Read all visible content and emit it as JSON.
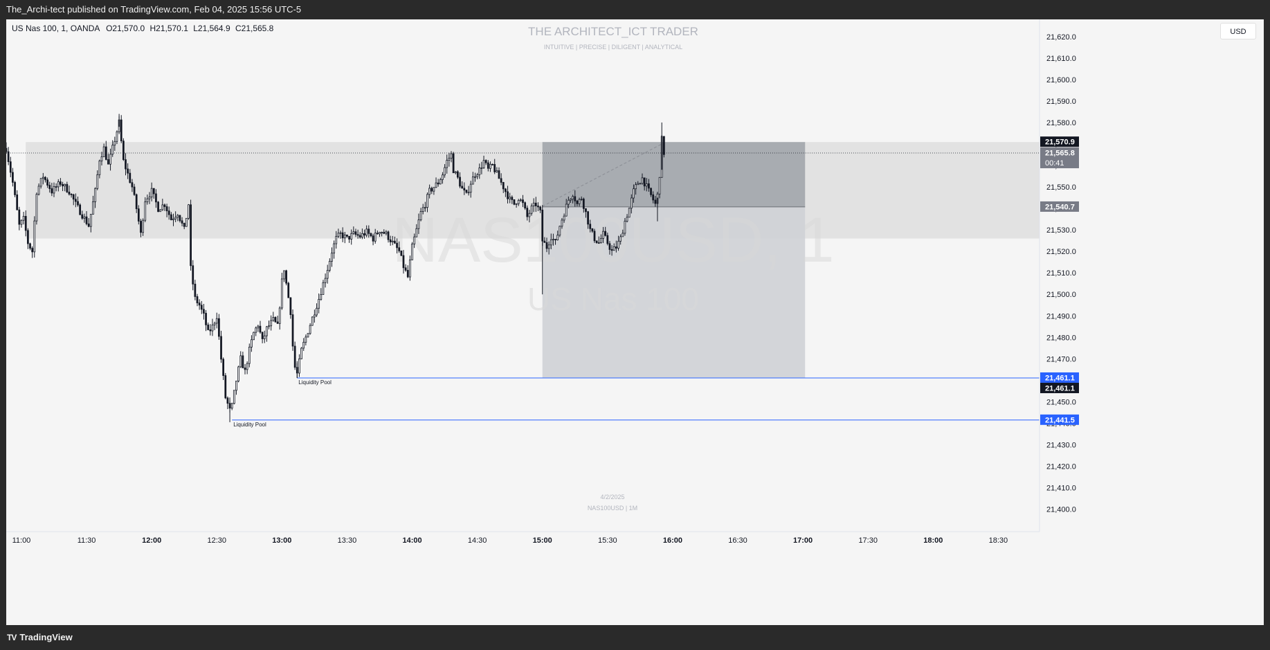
{
  "header": {
    "published_text": "The_Archi-tect published on TradingView.com, Feb 04, 2025 15:56 UTC-5"
  },
  "footer": {
    "brand": "TradingView",
    "logo": "tradingview-logo"
  },
  "legend": {
    "symbol": "US Nas 100, 1, OANDA",
    "open_label": "O",
    "open": "21,570.0",
    "high_label": "H",
    "high": "21,570.1",
    "low_label": "L",
    "low": "21,564.9",
    "close_label": "C",
    "close": "21,565.8"
  },
  "currency_button": "USD",
  "watermark": {
    "title": "THE ARCHITECT_ICT TRADER",
    "subtitle": "INTUITIVE | PRECISE | DILIGENT | ANALYTICAL",
    "symbol_big": "NAS100USD, 1",
    "name_big": "US Nas 100",
    "bottom_date": "4/2/2025",
    "bottom_symbol": "NAS100USD | 1M"
  },
  "colors": {
    "background": "#f5f5f5",
    "candle": "#131722",
    "zone_light": "#e0e0e0",
    "zone_dark": "#9ea2a8",
    "zone_mid": "#cfd2d6",
    "liquidity_line": "#2962ff",
    "price_badge_dark": "#131722",
    "price_badge_grey": "#787b86"
  },
  "chart_data": {
    "type": "candlestick",
    "interval": "1m",
    "ylim": [
      21396,
      21628
    ],
    "xlim": [
      "10:53",
      "18:49"
    ],
    "y_ticks": [
      "21,620.0",
      "21,610.0",
      "21,600.0",
      "21,590.0",
      "21,580.0",
      "21,570.0",
      "21,560.0",
      "21,550.0",
      "21,540.0",
      "21,530.0",
      "21,520.0",
      "21,510.0",
      "21,500.0",
      "21,490.0",
      "21,480.0",
      "21,470.0",
      "21,460.0",
      "21,450.0",
      "21,440.0",
      "21,430.0",
      "21,420.0",
      "21,410.0",
      "21,400.0"
    ],
    "x_ticks": [
      "11:00",
      "11:30",
      "12:00",
      "12:30",
      "13:00",
      "13:30",
      "14:00",
      "14:30",
      "15:00",
      "15:30",
      "16:00",
      "16:30",
      "17:00",
      "17:30",
      "18:00",
      "18:30"
    ],
    "x_ticks_bold": [
      "12:00",
      "13:00",
      "14:00",
      "15:00",
      "16:00",
      "17:00",
      "18:00"
    ],
    "price_path": [
      {
        "t": "10:53",
        "p": 21568
      },
      {
        "t": "10:56",
        "p": 21552
      },
      {
        "t": "10:59",
        "p": 21532
      },
      {
        "t": "11:01",
        "p": 21535
      },
      {
        "t": "11:03",
        "p": 21524
      },
      {
        "t": "11:05",
        "p": 21520
      },
      {
        "t": "11:07",
        "p": 21548
      },
      {
        "t": "11:10",
        "p": 21555
      },
      {
        "t": "11:14",
        "p": 21548
      },
      {
        "t": "11:18",
        "p": 21552
      },
      {
        "t": "11:22",
        "p": 21548
      },
      {
        "t": "11:25",
        "p": 21542
      },
      {
        "t": "11:28",
        "p": 21537
      },
      {
        "t": "11:31",
        "p": 21532
      },
      {
        "t": "11:34",
        "p": 21548
      },
      {
        "t": "11:36",
        "p": 21563
      },
      {
        "t": "11:38",
        "p": 21568
      },
      {
        "t": "11:40",
        "p": 21560
      },
      {
        "t": "11:43",
        "p": 21572
      },
      {
        "t": "11:45",
        "p": 21580
      },
      {
        "t": "11:47",
        "p": 21562
      },
      {
        "t": "11:49",
        "p": 21556
      },
      {
        "t": "11:51",
        "p": 21550
      },
      {
        "t": "11:53",
        "p": 21540
      },
      {
        "t": "11:55",
        "p": 21528
      },
      {
        "t": "11:57",
        "p": 21544
      },
      {
        "t": "12:00",
        "p": 21548
      },
      {
        "t": "12:03",
        "p": 21540
      },
      {
        "t": "12:06",
        "p": 21542
      },
      {
        "t": "12:09",
        "p": 21535
      },
      {
        "t": "12:12",
        "p": 21538
      },
      {
        "t": "12:15",
        "p": 21530
      },
      {
        "t": "12:17",
        "p": 21542
      },
      {
        "t": "12:18",
        "p": 21512
      },
      {
        "t": "12:20",
        "p": 21498
      },
      {
        "t": "12:22",
        "p": 21495
      },
      {
        "t": "12:24",
        "p": 21490
      },
      {
        "t": "12:26",
        "p": 21482
      },
      {
        "t": "12:28",
        "p": 21485
      },
      {
        "t": "12:30",
        "p": 21490
      },
      {
        "t": "12:32",
        "p": 21470
      },
      {
        "t": "12:34",
        "p": 21452
      },
      {
        "t": "12:36",
        "p": 21446
      },
      {
        "t": "12:37",
        "p": 21448
      },
      {
        "t": "12:39",
        "p": 21460
      },
      {
        "t": "12:41",
        "p": 21470
      },
      {
        "t": "12:43",
        "p": 21464
      },
      {
        "t": "12:45",
        "p": 21474
      },
      {
        "t": "12:47",
        "p": 21482
      },
      {
        "t": "12:49",
        "p": 21486
      },
      {
        "t": "12:51",
        "p": 21478
      },
      {
        "t": "12:53",
        "p": 21484
      },
      {
        "t": "12:56",
        "p": 21488
      },
      {
        "t": "12:58",
        "p": 21485
      },
      {
        "t": "12:59",
        "p": 21495
      },
      {
        "t": "13:00",
        "p": 21506
      },
      {
        "t": "13:01",
        "p": 21512
      },
      {
        "t": "13:02",
        "p": 21505
      },
      {
        "t": "13:04",
        "p": 21492
      },
      {
        "t": "13:05",
        "p": 21476
      },
      {
        "t": "13:06",
        "p": 21466
      },
      {
        "t": "13:07",
        "p": 21463
      },
      {
        "t": "13:09",
        "p": 21474
      },
      {
        "t": "13:11",
        "p": 21480
      },
      {
        "t": "13:13",
        "p": 21486
      },
      {
        "t": "13:15",
        "p": 21492
      },
      {
        "t": "13:17",
        "p": 21498
      },
      {
        "t": "13:19",
        "p": 21505
      },
      {
        "t": "13:21",
        "p": 21512
      },
      {
        "t": "13:23",
        "p": 21520
      },
      {
        "t": "13:25",
        "p": 21526
      },
      {
        "t": "13:27",
        "p": 21528
      },
      {
        "t": "13:30",
        "p": 21526
      },
      {
        "t": "13:33",
        "p": 21528
      },
      {
        "t": "13:36",
        "p": 21527
      },
      {
        "t": "13:39",
        "p": 21529
      },
      {
        "t": "13:42",
        "p": 21526
      },
      {
        "t": "13:45",
        "p": 21530
      },
      {
        "t": "13:48",
        "p": 21528
      },
      {
        "t": "13:51",
        "p": 21524
      },
      {
        "t": "13:54",
        "p": 21520
      },
      {
        "t": "13:56",
        "p": 21513
      },
      {
        "t": "13:58",
        "p": 21508
      },
      {
        "t": "14:00",
        "p": 21522
      },
      {
        "t": "14:02",
        "p": 21530
      },
      {
        "t": "14:04",
        "p": 21538
      },
      {
        "t": "14:06",
        "p": 21542
      },
      {
        "t": "14:08",
        "p": 21548
      },
      {
        "t": "14:10",
        "p": 21550
      },
      {
        "t": "14:12",
        "p": 21552
      },
      {
        "t": "14:14",
        "p": 21556
      },
      {
        "t": "14:16",
        "p": 21562
      },
      {
        "t": "14:18",
        "p": 21565
      },
      {
        "t": "14:19",
        "p": 21558
      },
      {
        "t": "14:21",
        "p": 21554
      },
      {
        "t": "14:23",
        "p": 21549
      },
      {
        "t": "14:25",
        "p": 21546
      },
      {
        "t": "14:27",
        "p": 21552
      },
      {
        "t": "14:29",
        "p": 21556
      },
      {
        "t": "14:31",
        "p": 21558
      },
      {
        "t": "14:33",
        "p": 21562
      },
      {
        "t": "14:35",
        "p": 21558
      },
      {
        "t": "14:37",
        "p": 21560
      },
      {
        "t": "14:39",
        "p": 21556
      },
      {
        "t": "14:41",
        "p": 21552
      },
      {
        "t": "14:43",
        "p": 21548
      },
      {
        "t": "14:45",
        "p": 21544
      },
      {
        "t": "14:47",
        "p": 21542
      },
      {
        "t": "14:49",
        "p": 21545
      },
      {
        "t": "14:51",
        "p": 21542
      },
      {
        "t": "14:53",
        "p": 21536
      },
      {
        "t": "14:55",
        "p": 21540
      },
      {
        "t": "14:57",
        "p": 21542
      },
      {
        "t": "14:59",
        "p": 21538
      },
      {
        "t": "15:00",
        "p": 21525
      },
      {
        "t": "15:02",
        "p": 21522
      },
      {
        "t": "15:04",
        "p": 21527
      },
      {
        "t": "15:06",
        "p": 21524
      },
      {
        "t": "15:08",
        "p": 21532
      },
      {
        "t": "15:10",
        "p": 21538
      },
      {
        "t": "15:12",
        "p": 21544
      },
      {
        "t": "15:14",
        "p": 21547
      },
      {
        "t": "15:16",
        "p": 21542
      },
      {
        "t": "15:18",
        "p": 21545
      },
      {
        "t": "15:20",
        "p": 21538
      },
      {
        "t": "15:22",
        "p": 21530
      },
      {
        "t": "15:24",
        "p": 21526
      },
      {
        "t": "15:26",
        "p": 21524
      },
      {
        "t": "15:28",
        "p": 21528
      },
      {
        "t": "15:30",
        "p": 21524
      },
      {
        "t": "15:32",
        "p": 21520
      },
      {
        "t": "15:34",
        "p": 21522
      },
      {
        "t": "15:36",
        "p": 21526
      },
      {
        "t": "15:38",
        "p": 21534
      },
      {
        "t": "15:40",
        "p": 21540
      },
      {
        "t": "15:42",
        "p": 21548
      },
      {
        "t": "15:44",
        "p": 21552
      },
      {
        "t": "15:46",
        "p": 21554
      },
      {
        "t": "15:48",
        "p": 21550
      },
      {
        "t": "15:50",
        "p": 21546
      },
      {
        "t": "15:52",
        "p": 21542
      },
      {
        "t": "15:53",
        "p": 21546
      },
      {
        "t": "15:54",
        "p": 21556
      },
      {
        "t": "15:55",
        "p": 21572
      },
      {
        "t": "15:56",
        "p": 21566
      }
    ],
    "zones": [
      {
        "from": "11:02",
        "to": "18:49",
        "top": 21570.9,
        "bottom": 21526
      },
      {
        "from": "15:00",
        "to": "17:01",
        "top": 21570.9,
        "bottom": 21540.7
      },
      {
        "from": "15:00",
        "to": "17:01",
        "top": 21540.7,
        "bottom": 21461.1
      }
    ],
    "lines": [
      {
        "label": "Liquidity Pool",
        "value": 21461.1,
        "from": "13:07"
      },
      {
        "label": "Liquidity Pool",
        "value": 21441.5,
        "from": "12:37"
      }
    ],
    "price_labels": [
      {
        "value": 21570.9,
        "text": "21,570.9",
        "style": "dark"
      },
      {
        "value": 21565.8,
        "text": "21,565.8",
        "sub": "00:41",
        "style": "grey"
      },
      {
        "value": 21540.7,
        "text": "21,540.7",
        "style": "grey"
      },
      {
        "value": 21461.1,
        "text": "21,461.1",
        "style": "blue"
      },
      {
        "value": 21461.1,
        "text": "21,461.1",
        "style": "dark"
      },
      {
        "value": 21441.5,
        "text": "21,441.5",
        "style": "blue"
      }
    ]
  }
}
